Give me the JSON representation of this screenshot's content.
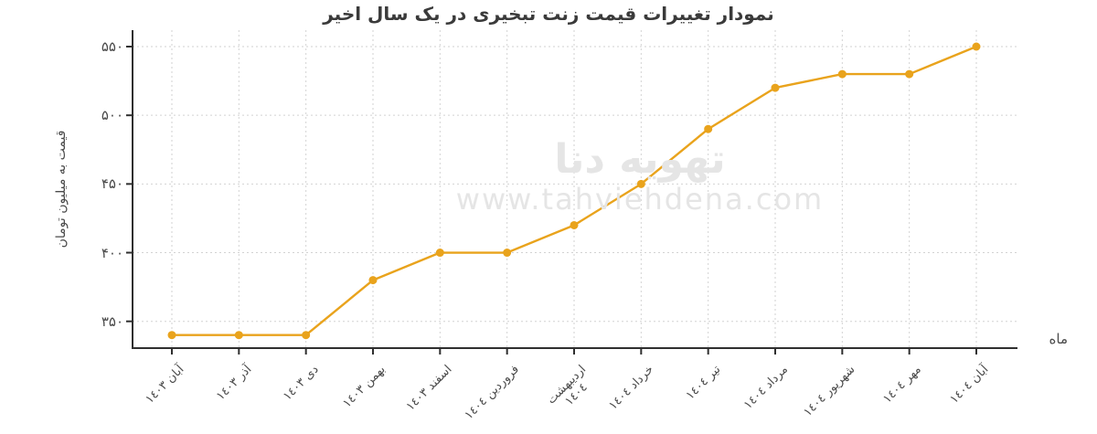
{
  "page": {
    "background": "#ffffff"
  },
  "chart_data": {
    "type": "line",
    "title": "نمودار تغییرات قیمت زنت تبخیری در یک سال اخیر",
    "xlabel": "ماه",
    "ylabel": "قیمت به میلیون تومان",
    "categories": [
      "آبان ١٤٠٣",
      "آذر ١٤٠٣",
      "دی ١٤٠٣",
      "بهمن ١٤٠٣",
      "اسفند ١٤٠٣",
      "فروردین ١٤٠٤",
      "اردیبهشت\n١٤٠٤",
      "خرداد ١٤٠٤",
      "تیر ١٤٠٤",
      "مرداد ١٤٠٤",
      "شهریور ١٤٠٤",
      "مهر ١٤٠٤",
      "آبان ١٤٠٤"
    ],
    "values": [
      340,
      340,
      340,
      380,
      400,
      400,
      420,
      450,
      490,
      520,
      530,
      530,
      550
    ],
    "yticks": {
      "values": [
        350,
        400,
        450,
        500,
        550
      ],
      "labels": [
        "۳۵۰",
        "۴۰۰",
        "۴۵۰",
        "۵۰۰",
        "۵۵۰"
      ]
    },
    "ylim": [
      330,
      562
    ],
    "grid": true,
    "legend": false,
    "line_color": "#E9A31C",
    "marker_color": "#E9A31C",
    "grid_color": "#d2d2d2",
    "axis_color": "#2f2f2f",
    "tick_text_color": "#4a4a4a",
    "title_color": "#3a3a3a"
  },
  "watermark": {
    "line1": "تهویه دنا",
    "line2": "www.tahviehdena.com",
    "color": "#e5e5e5"
  }
}
